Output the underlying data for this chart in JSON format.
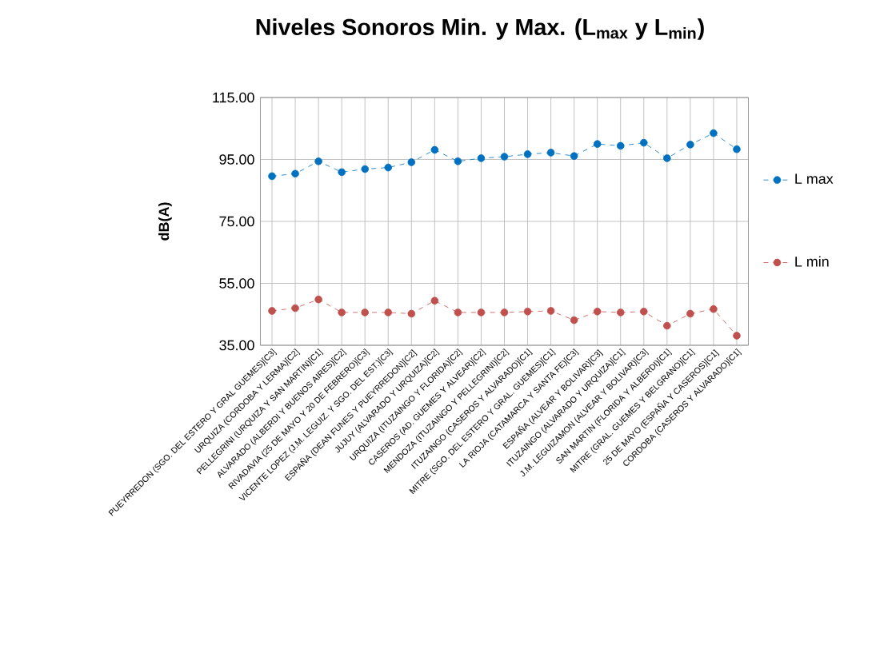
{
  "chart_data": {
    "type": "line",
    "title": "Niveles Sonoros Min. y Max. (L$_{max}$ y L$_{min}$)",
    "ylabel": "dB(A)",
    "categories": [
      "PUEYRREDON (SGO. DEL ESTERO Y GRAL GUEMES)[C3]",
      "URQUIZA (CORDOBA Y LERMA)[C2]",
      "PELLEGRINI (URQUIZA Y SAN MARTIN)[C1]",
      "ALVARADO (ALBERDI Y BUENOS AIRES)[C2]",
      "RIVADAVIA (25 DE MAYO Y 20 DE FEBRERO)[C3]",
      "VICENTE LOPEZ (J.M. LEGUIZ. Y SGO. DEL EST.)[C3]",
      "ESPAÑA (DEAN FUNES Y PUEYRREDON)[C2]",
      "JUJUY (ALVARADO Y URQUIZA)[C2]",
      "URQUIZA (ITUZAINGO Y FLORIDA)[C2]",
      "CASEROS (AD. GUEMES Y ALVEAR)[C2]",
      "MENDOZA (ITUZAINGO Y PELLEGRINI)[C2]",
      "ITUZAINGO (CASEROS Y ALVARADO)[C1]",
      "MITRE (SGO. DEL ESTERO Y GRAL. GUEMES)[C1]",
      "LA RIOJA (CATAMARCA Y SANTA FE)[C3]",
      "ESPAÑA (ALVEAR Y BOLIVAR)[C3]",
      "ITUZAINGO (ALVARADO Y URQUIZA)[C1]",
      "J.M. LEGUIZAMON (ALVEAR Y BOLIVAR)[C3]",
      "SAN MARTIN (FLORIDA Y ALBERDI)[C1]",
      "MITRE (GRAL. GUEMES Y BELGRANO)[C1]",
      "25 DE MAYO (ESPAÑA Y CASEROS)[C1]",
      "CORDOBA (CASEROS Y ALVARADO)[C1]"
    ],
    "series": [
      {
        "name": "L max",
        "color": "#0070c0",
        "values": [
          89.6,
          90.4,
          94.4,
          90.9,
          91.9,
          92.4,
          94.1,
          98.1,
          94.4,
          95.4,
          95.9,
          96.7,
          97.2,
          96.1,
          100.0,
          99.4,
          100.4,
          95.4,
          99.8,
          103.5,
          98.3
        ]
      },
      {
        "name": "L min",
        "color": "#c0504d",
        "values": [
          46.1,
          47.0,
          49.8,
          45.6,
          45.6,
          45.6,
          45.2,
          49.4,
          45.6,
          45.6,
          45.6,
          45.9,
          46.1,
          43.1,
          45.9,
          45.6,
          45.9,
          41.3,
          45.2,
          46.7,
          38.1
        ]
      }
    ],
    "ylim": [
      35,
      115
    ],
    "yticks": [
      {
        "value": 35,
        "label": "35.00"
      },
      {
        "value": 55,
        "label": "55.00"
      },
      {
        "value": 75,
        "label": "75.00"
      },
      {
        "value": 95,
        "label": "95.00"
      },
      {
        "value": 115,
        "label": "115.00"
      }
    ],
    "grid": true,
    "legend": "right",
    "marker": "circle",
    "line_style": "dashed"
  }
}
